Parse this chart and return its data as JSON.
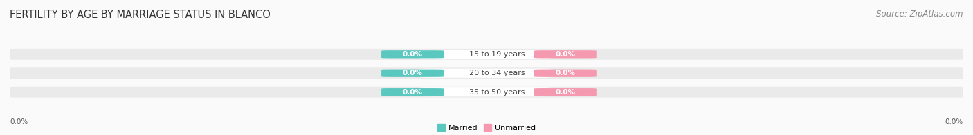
{
  "title": "FERTILITY BY AGE BY MARRIAGE STATUS IN BLANCO",
  "source": "Source: ZipAtlas.com",
  "age_groups": [
    "15 to 19 years",
    "20 to 34 years",
    "35 to 50 years"
  ],
  "married_values": [
    0.0,
    0.0,
    0.0
  ],
  "unmarried_values": [
    0.0,
    0.0,
    0.0
  ],
  "married_color": "#5BC8C0",
  "unmarried_color": "#F599B0",
  "bar_bg_color": "#EAEAEA",
  "background_color": "#FAFAFA",
  "axis_label_left": "0.0%",
  "axis_label_right": "0.0%",
  "title_fontsize": 10.5,
  "source_fontsize": 8.5,
  "label_fontsize": 7.5,
  "age_label_fontsize": 8.0
}
